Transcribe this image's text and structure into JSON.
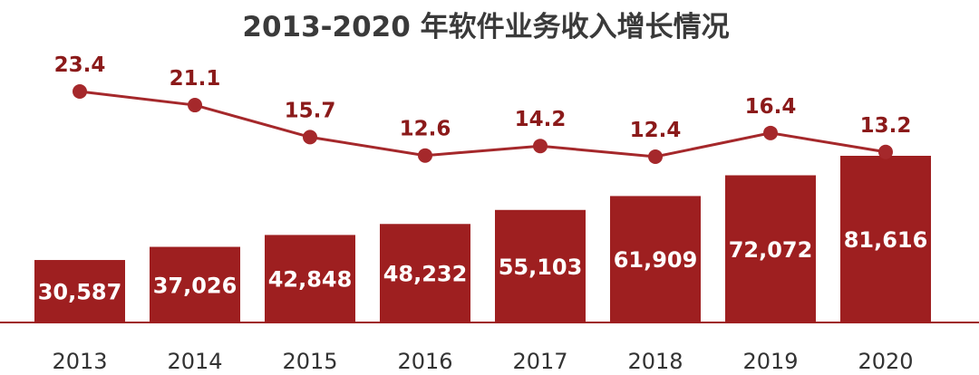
{
  "chart_data": {
    "type": "bar",
    "title": "2013-2020 年软件业务收入增长情况",
    "categories": [
      "2013",
      "2014",
      "2015",
      "2016",
      "2017",
      "2018",
      "2019",
      "2020"
    ],
    "series": [
      {
        "type": "bar",
        "values": [
          30587,
          37026,
          42848,
          48232,
          55103,
          61909,
          72072,
          81616
        ],
        "labels": [
          "30,587",
          "37,026",
          "42,848",
          "48,232",
          "55,103",
          "61,909",
          "72,072",
          "81,616"
        ]
      },
      {
        "type": "line",
        "values": [
          23.4,
          21.1,
          15.7,
          12.6,
          14.2,
          12.4,
          16.4,
          13.2
        ],
        "labels": [
          "23.4",
          "21.1",
          "15.7",
          "12.6",
          "14.2",
          "12.4",
          "16.4",
          "13.2"
        ]
      }
    ],
    "colors": {
      "bar": "#9e1f20",
      "line": "#a5282b",
      "axis": "#9e1f20"
    },
    "grid": false,
    "legend": "none"
  }
}
